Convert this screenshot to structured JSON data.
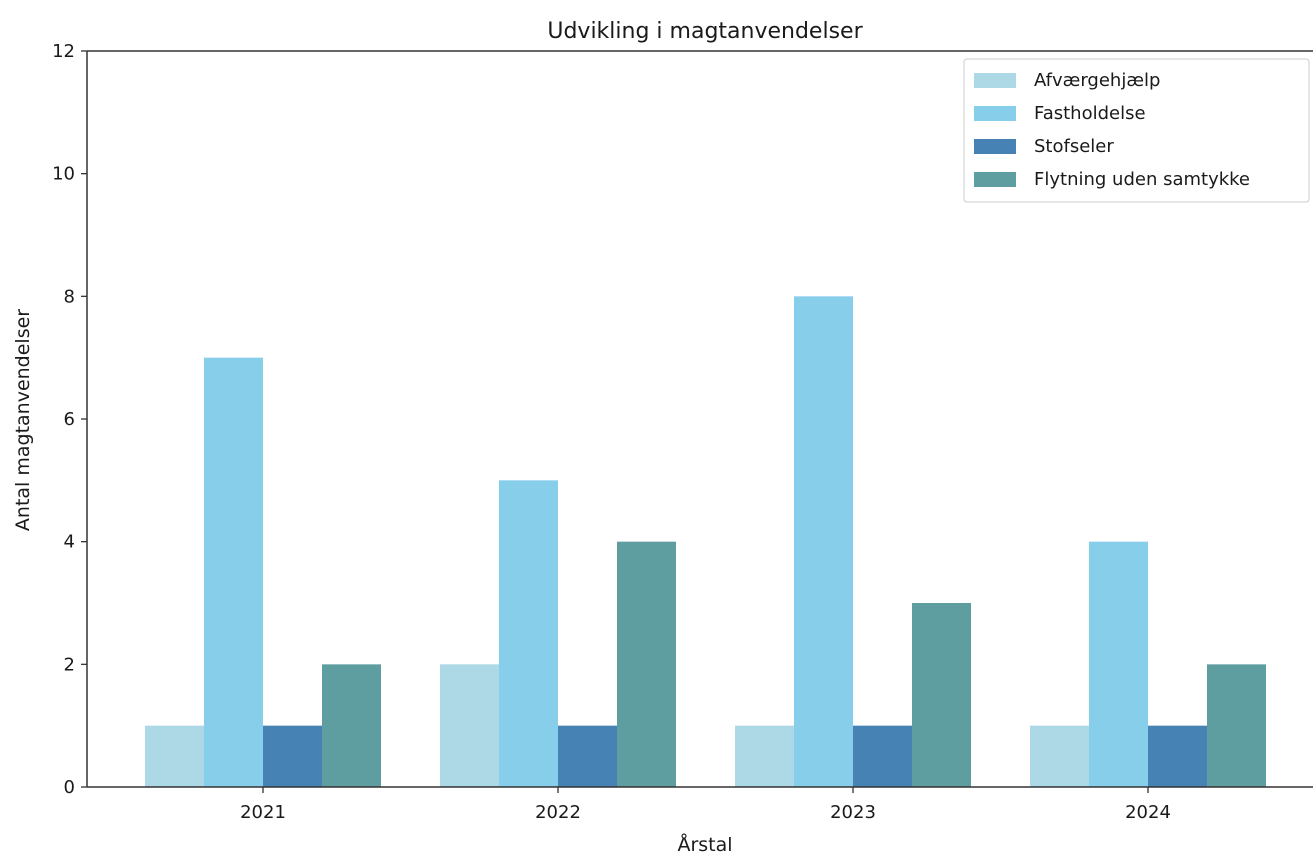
{
  "chart_data": {
    "type": "bar",
    "title": "Udvikling i magtanvendelser",
    "xlabel": "Årstal",
    "ylabel": "Antal magtanvendelser",
    "categories": [
      "2021",
      "2022",
      "2023",
      "2024"
    ],
    "ylim": [
      0,
      12
    ],
    "yticks": [
      "0",
      "2",
      "4",
      "6",
      "8",
      "10",
      "12"
    ],
    "grid": false,
    "legend_position": "top-right",
    "series": [
      {
        "name": "Afværgehjælp",
        "color": "#add8e6",
        "values": [
          1,
          2,
          1,
          1
        ]
      },
      {
        "name": "Fastholdelse",
        "color": "#87ceeb",
        "values": [
          7,
          5,
          8,
          4
        ]
      },
      {
        "name": "Stofseler",
        "color": "#4682b4",
        "values": [
          1,
          1,
          1,
          1
        ]
      },
      {
        "name": "Flytning uden samtykke",
        "color": "#5f9ea0",
        "values": [
          2,
          4,
          3,
          2
        ]
      }
    ]
  }
}
